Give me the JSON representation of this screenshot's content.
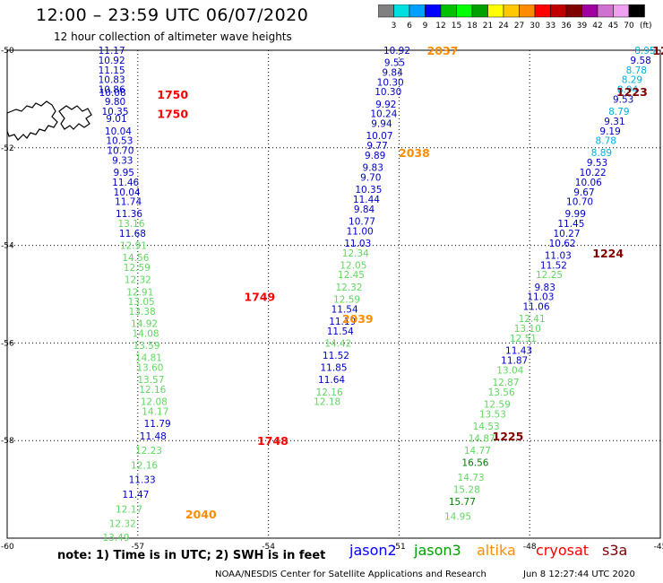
{
  "header": {
    "title": "12:00 – 23:59 UTC 06/07/2020",
    "subtitle": "12 hour collection of altimeter wave heights"
  },
  "legend": {
    "unit": "(ft)",
    "bins": [
      {
        "label": "3",
        "color": "#808080"
      },
      {
        "label": "6",
        "color": "#00e0e0"
      },
      {
        "label": "9",
        "color": "#00a0ff"
      },
      {
        "label": "12",
        "color": "#0000ff"
      },
      {
        "label": "15",
        "color": "#00c000"
      },
      {
        "label": "18",
        "color": "#00ff00"
      },
      {
        "label": "21",
        "color": "#00a000"
      },
      {
        "label": "24",
        "color": "#ffff00"
      },
      {
        "label": "27",
        "color": "#ffc800"
      },
      {
        "label": "30",
        "color": "#ff8c00"
      },
      {
        "label": "33",
        "color": "#ff0000"
      },
      {
        "label": "36",
        "color": "#c00000"
      },
      {
        "label": "39",
        "color": "#800000"
      },
      {
        "label": "42",
        "color": "#a000a0"
      },
      {
        "label": "45",
        "color": "#d070d0"
      },
      {
        "label": "70",
        "color": "#f0a0f0"
      },
      {
        "label": "",
        "color": "#000000"
      }
    ]
  },
  "map": {
    "lat_ticks": [
      "-50",
      "-52",
      "-54",
      "-56",
      "-58",
      "-60"
    ],
    "lon_ticks": [
      "-57",
      "-54",
      "-51",
      "-48",
      "-45"
    ],
    "lon_range": [
      -60,
      -45
    ],
    "lat_range": [
      -60,
      -50
    ],
    "colors": {
      "jason2": "#0000c8",
      "jason3": "#008000",
      "light_green": "#60d860",
      "cyan": "#00b0e0",
      "altika": "#ff8c00",
      "cryosat": "#ff0000",
      "s3a": "#800000"
    },
    "tracks": [
      {
        "id": "A",
        "points": [
          {
            "lon": -57.6,
            "lat": -50.0,
            "v": "11.17",
            "c": "jason2"
          },
          {
            "lon": -57.6,
            "lat": -50.2,
            "v": "10.92",
            "c": "jason2"
          },
          {
            "lon": -57.6,
            "lat": -50.4,
            "v": "11.15",
            "c": "jason2"
          },
          {
            "lon": -57.6,
            "lat": -50.6,
            "v": "10.83",
            "c": "jason2"
          },
          {
            "lon": -57.6,
            "lat": -50.8,
            "v": "10.86",
            "c": "jason2"
          },
          {
            "lon": -57.58,
            "lat": -50.86,
            "v": "10.08",
            "c": "jason2"
          },
          {
            "lon": -57.52,
            "lat": -51.05,
            "v": "9.80",
            "c": "jason2"
          },
          {
            "lon": -57.52,
            "lat": -51.25,
            "v": "10.35",
            "c": "jason2"
          },
          {
            "lon": -57.49,
            "lat": -51.4,
            "v": "9.01",
            "c": "jason2"
          },
          {
            "lon": -57.45,
            "lat": -51.65,
            "v": "10.04",
            "c": "jason2"
          },
          {
            "lon": -57.42,
            "lat": -51.85,
            "v": "10.53",
            "c": "jason2"
          },
          {
            "lon": -57.4,
            "lat": -52.05,
            "v": "10.70",
            "c": "jason2"
          },
          {
            "lon": -57.35,
            "lat": -52.25,
            "v": "9.33",
            "c": "jason2"
          },
          {
            "lon": -57.32,
            "lat": -52.5,
            "v": "9.95",
            "c": "jason2"
          },
          {
            "lon": -57.28,
            "lat": -52.7,
            "v": "11.46",
            "c": "jason2"
          },
          {
            "lon": -57.25,
            "lat": -52.9,
            "v": "10.04",
            "c": "jason2"
          },
          {
            "lon": -57.22,
            "lat": -53.1,
            "v": "11.74",
            "c": "jason2"
          },
          {
            "lon": -57.2,
            "lat": -53.35,
            "v": "11.36",
            "c": "jason2"
          },
          {
            "lon": -57.15,
            "lat": -53.55,
            "v": "13.16",
            "c": "light_green"
          },
          {
            "lon": -57.12,
            "lat": -53.75,
            "v": "11.68",
            "c": "jason2"
          },
          {
            "lon": -57.1,
            "lat": -54.0,
            "v": "12.91",
            "c": "light_green"
          },
          {
            "lon": -57.05,
            "lat": -54.25,
            "v": "14.56",
            "c": "light_green"
          },
          {
            "lon": -57.02,
            "lat": -54.45,
            "v": "12.59",
            "c": "light_green"
          },
          {
            "lon": -57.0,
            "lat": -54.7,
            "v": "12.32",
            "c": "light_green"
          },
          {
            "lon": -56.95,
            "lat": -54.95,
            "v": "12.91",
            "c": "light_green"
          },
          {
            "lon": -56.92,
            "lat": -55.15,
            "v": "13.05",
            "c": "light_green"
          },
          {
            "lon": -56.9,
            "lat": -55.35,
            "v": "13.38",
            "c": "light_green"
          },
          {
            "lon": -56.85,
            "lat": -55.6,
            "v": "14.92",
            "c": "light_green"
          },
          {
            "lon": -56.82,
            "lat": -55.8,
            "v": "14.08",
            "c": "light_green"
          },
          {
            "lon": -56.8,
            "lat": -56.05,
            "v": "13.59",
            "c": "light_green"
          },
          {
            "lon": -56.75,
            "lat": -56.3,
            "v": "14.81",
            "c": "light_green"
          },
          {
            "lon": -56.72,
            "lat": -56.5,
            "v": "13.60",
            "c": "light_green"
          },
          {
            "lon": -56.7,
            "lat": -56.75,
            "v": "13.57",
            "c": "light_green"
          },
          {
            "lon": -56.66,
            "lat": -56.95,
            "v": "12.16",
            "c": "light_green"
          },
          {
            "lon": -56.63,
            "lat": -57.2,
            "v": "12.08",
            "c": "light_green"
          },
          {
            "lon": -56.6,
            "lat": -57.4,
            "v": "14.17",
            "c": "light_green"
          },
          {
            "lon": -56.55,
            "lat": -57.65,
            "v": "11.79",
            "c": "jason2"
          },
          {
            "lon": -56.65,
            "lat": -57.9,
            "v": "11.48",
            "c": "jason2"
          },
          {
            "lon": -56.75,
            "lat": -58.2,
            "v": "12.23",
            "c": "light_green"
          },
          {
            "lon": -56.85,
            "lat": -58.5,
            "v": "12.16",
            "c": "light_green"
          },
          {
            "lon": -56.9,
            "lat": -58.8,
            "v": "11.33",
            "c": "jason2"
          },
          {
            "lon": -57.05,
            "lat": -59.1,
            "v": "11.47",
            "c": "jason2"
          },
          {
            "lon": -57.2,
            "lat": -59.4,
            "v": "12.17",
            "c": "light_green"
          },
          {
            "lon": -57.35,
            "lat": -59.7,
            "v": "12.32",
            "c": "light_green"
          },
          {
            "lon": -57.5,
            "lat": -59.98,
            "v": "13.49",
            "c": "light_green"
          }
        ]
      },
      {
        "id": "B",
        "points": [
          {
            "lon": -51.05,
            "lat": -50.0,
            "v": "10.92",
            "c": "jason2"
          },
          {
            "lon": -51.1,
            "lat": -50.25,
            "v": "9.55",
            "c": "jason2"
          },
          {
            "lon": -51.15,
            "lat": -50.45,
            "v": "9.84",
            "c": "jason2"
          },
          {
            "lon": -51.2,
            "lat": -50.65,
            "v": "10.30",
            "c": "jason2"
          },
          {
            "lon": -51.25,
            "lat": -50.85,
            "v": "10.30",
            "c": "jason2"
          },
          {
            "lon": -51.3,
            "lat": -51.1,
            "v": "9.92",
            "c": "jason2"
          },
          {
            "lon": -51.35,
            "lat": -51.3,
            "v": "10.24",
            "c": "jason2"
          },
          {
            "lon": -51.4,
            "lat": -51.5,
            "v": "9.94",
            "c": "jason2"
          },
          {
            "lon": -51.45,
            "lat": -51.75,
            "v": "10.07",
            "c": "jason2"
          },
          {
            "lon": -51.5,
            "lat": -51.95,
            "v": "9.77",
            "c": "jason2"
          },
          {
            "lon": -51.55,
            "lat": -52.15,
            "v": "9.89",
            "c": "jason2"
          },
          {
            "lon": -51.6,
            "lat": -52.4,
            "v": "9.83",
            "c": "jason2"
          },
          {
            "lon": -51.65,
            "lat": -52.6,
            "v": "9.70",
            "c": "jason2"
          },
          {
            "lon": -51.7,
            "lat": -52.85,
            "v": "10.35",
            "c": "jason2"
          },
          {
            "lon": -51.75,
            "lat": -53.05,
            "v": "11.44",
            "c": "jason2"
          },
          {
            "lon": -51.8,
            "lat": -53.25,
            "v": "9.84",
            "c": "jason2"
          },
          {
            "lon": -51.85,
            "lat": -53.5,
            "v": "10.77",
            "c": "jason2"
          },
          {
            "lon": -51.9,
            "lat": -53.7,
            "v": "11.00",
            "c": "jason2"
          },
          {
            "lon": -51.95,
            "lat": -53.95,
            "v": "11.03",
            "c": "jason2"
          },
          {
            "lon": -52.0,
            "lat": -54.15,
            "v": "12.34",
            "c": "light_green"
          },
          {
            "lon": -52.05,
            "lat": -54.4,
            "v": "12.05",
            "c": "light_green"
          },
          {
            "lon": -52.1,
            "lat": -54.6,
            "v": "12.45",
            "c": "light_green"
          },
          {
            "lon": -52.15,
            "lat": -54.85,
            "v": "12.32",
            "c": "light_green"
          },
          {
            "lon": -52.2,
            "lat": -55.1,
            "v": "12.59",
            "c": "light_green"
          },
          {
            "lon": -52.25,
            "lat": -55.3,
            "v": "11.54",
            "c": "jason2"
          },
          {
            "lon": -52.3,
            "lat": -55.55,
            "v": "11.19",
            "c": "jason2"
          },
          {
            "lon": -52.35,
            "lat": -55.75,
            "v": "11.54",
            "c": "jason2"
          },
          {
            "lon": -52.4,
            "lat": -56.0,
            "v": "14.42",
            "c": "light_green"
          },
          {
            "lon": -52.45,
            "lat": -56.25,
            "v": "11.52",
            "c": "jason2"
          },
          {
            "lon": -52.5,
            "lat": -56.5,
            "v": "11.85",
            "c": "jason2"
          },
          {
            "lon": -52.55,
            "lat": -56.75,
            "v": "11.64",
            "c": "jason2"
          },
          {
            "lon": -52.6,
            "lat": -57.0,
            "v": "12.16",
            "c": "light_green"
          },
          {
            "lon": -52.65,
            "lat": -57.2,
            "v": "12.18",
            "c": "light_green"
          }
        ]
      },
      {
        "id": "C",
        "points": [
          {
            "lon": -45.35,
            "lat": -50.0,
            "v": "8.95",
            "c": "cyan"
          },
          {
            "lon": -45.45,
            "lat": -50.2,
            "v": "9.58",
            "c": "jason2"
          },
          {
            "lon": -45.55,
            "lat": -50.4,
            "v": "8.78",
            "c": "cyan"
          },
          {
            "lon": -45.65,
            "lat": -50.6,
            "v": "8.29",
            "c": "cyan"
          },
          {
            "lon": -45.75,
            "lat": -50.8,
            "v": "8.94",
            "c": "cyan"
          },
          {
            "lon": -45.85,
            "lat": -51.0,
            "v": "9.53",
            "c": "jason2"
          },
          {
            "lon": -45.95,
            "lat": -51.25,
            "v": "8.79",
            "c": "cyan"
          },
          {
            "lon": -46.05,
            "lat": -51.45,
            "v": "9.31",
            "c": "jason2"
          },
          {
            "lon": -46.15,
            "lat": -51.65,
            "v": "9.19",
            "c": "jason2"
          },
          {
            "lon": -46.25,
            "lat": -51.85,
            "v": "8.78",
            "c": "cyan"
          },
          {
            "lon": -46.35,
            "lat": -52.1,
            "v": "8.89",
            "c": "cyan"
          },
          {
            "lon": -46.45,
            "lat": -52.3,
            "v": "9.53",
            "c": "jason2"
          },
          {
            "lon": -46.55,
            "lat": -52.5,
            "v": "10.22",
            "c": "jason2"
          },
          {
            "lon": -46.65,
            "lat": -52.7,
            "v": "10.06",
            "c": "jason2"
          },
          {
            "lon": -46.75,
            "lat": -52.9,
            "v": "9.67",
            "c": "jason2"
          },
          {
            "lon": -46.85,
            "lat": -53.1,
            "v": "10.70",
            "c": "jason2"
          },
          {
            "lon": -46.95,
            "lat": -53.35,
            "v": "9.99",
            "c": "jason2"
          },
          {
            "lon": -47.05,
            "lat": -53.55,
            "v": "11.45",
            "c": "jason2"
          },
          {
            "lon": -47.15,
            "lat": -53.75,
            "v": "10.27",
            "c": "jason2"
          },
          {
            "lon": -47.25,
            "lat": -53.95,
            "v": "10.62",
            "c": "jason2"
          },
          {
            "lon": -47.35,
            "lat": -54.2,
            "v": "11.03",
            "c": "jason2"
          },
          {
            "lon": -47.45,
            "lat": -54.4,
            "v": "11.52",
            "c": "jason2"
          },
          {
            "lon": -47.55,
            "lat": -54.6,
            "v": "12.25",
            "c": "light_green"
          },
          {
            "lon": -47.65,
            "lat": -54.85,
            "v": "9.83",
            "c": "jason2"
          },
          {
            "lon": -47.75,
            "lat": -55.05,
            "v": "11.03",
            "c": "jason2"
          },
          {
            "lon": -47.85,
            "lat": -55.25,
            "v": "11.06",
            "c": "jason2"
          },
          {
            "lon": -47.95,
            "lat": -55.5,
            "v": "12.41",
            "c": "light_green"
          },
          {
            "lon": -48.05,
            "lat": -55.7,
            "v": "13.10",
            "c": "light_green"
          },
          {
            "lon": -48.15,
            "lat": -55.9,
            "v": "12.51",
            "c": "light_green"
          },
          {
            "lon": -48.25,
            "lat": -56.15,
            "v": "11.43",
            "c": "jason2"
          },
          {
            "lon": -48.35,
            "lat": -56.35,
            "v": "11.87",
            "c": "jason2"
          },
          {
            "lon": -48.45,
            "lat": -56.55,
            "v": "13.04",
            "c": "light_green"
          },
          {
            "lon": -48.55,
            "lat": -56.8,
            "v": "12.87",
            "c": "light_green"
          },
          {
            "lon": -48.65,
            "lat": -57.0,
            "v": "13.56",
            "c": "light_green"
          },
          {
            "lon": -48.75,
            "lat": -57.25,
            "v": "12.59",
            "c": "light_green"
          },
          {
            "lon": -48.85,
            "lat": -57.45,
            "v": "13.53",
            "c": "light_green"
          },
          {
            "lon": -49.0,
            "lat": -57.7,
            "v": "14.53",
            "c": "light_green"
          },
          {
            "lon": -49.1,
            "lat": -57.95,
            "v": "14.87",
            "c": "light_green"
          },
          {
            "lon": -49.2,
            "lat": -58.2,
            "v": "14.77",
            "c": "light_green"
          },
          {
            "lon": -49.25,
            "lat": -58.45,
            "v": "16.56",
            "c": "jason3"
          },
          {
            "lon": -49.35,
            "lat": -58.75,
            "v": "14.73",
            "c": "light_green"
          },
          {
            "lon": -49.45,
            "lat": -59.0,
            "v": "15.28",
            "c": "light_green"
          },
          {
            "lon": -49.55,
            "lat": -59.25,
            "v": "15.77",
            "c": "jason3"
          },
          {
            "lon": -49.65,
            "lat": -59.55,
            "v": "14.95",
            "c": "light_green"
          }
        ]
      }
    ],
    "time_labels": [
      {
        "lon": -56.2,
        "lat": -50.9,
        "t": "1750",
        "c": "cryosat"
      },
      {
        "lon": -56.2,
        "lat": -51.3,
        "t": "1750",
        "c": "cryosat"
      },
      {
        "lon": -54.2,
        "lat": -55.05,
        "t": "1749",
        "c": "cryosat"
      },
      {
        "lon": -53.9,
        "lat": -58.0,
        "t": "1748",
        "c": "cryosat"
      },
      {
        "lon": -50.0,
        "lat": -50.0,
        "t": "2037",
        "c": "altika"
      },
      {
        "lon": -50.65,
        "lat": -52.1,
        "t": "2038",
        "c": "altika"
      },
      {
        "lon": -51.95,
        "lat": -55.5,
        "t": "2039",
        "c": "altika"
      },
      {
        "lon": -55.55,
        "lat": -59.5,
        "t": "2040",
        "c": "altika"
      },
      {
        "lon": -45.0,
        "lat": -50.0,
        "t": "12",
        "c": "s3a"
      },
      {
        "lon": -45.65,
        "lat": -50.85,
        "t": "1223",
        "c": "s3a"
      },
      {
        "lon": -46.2,
        "lat": -54.15,
        "t": "1224",
        "c": "s3a"
      },
      {
        "lon": -48.5,
        "lat": -57.9,
        "t": "1225",
        "c": "s3a"
      }
    ]
  },
  "footer": {
    "note": "note:  1) Time is in UTC; 2) SWH is in feet",
    "missions": [
      {
        "label": "jason2",
        "color": "#0000ff"
      },
      {
        "label": "jason3",
        "color": "#00a000"
      },
      {
        "label": "altika",
        "color": "#ff8c00"
      },
      {
        "label": "cryosat",
        "color": "#ff0000"
      },
      {
        "label": "s3a",
        "color": "#800000"
      }
    ],
    "credit": "NOAA/NESDIS Center for Satellite Applications and Research",
    "timestamp": "Jun  8 12:27:44 UTC 2020"
  }
}
